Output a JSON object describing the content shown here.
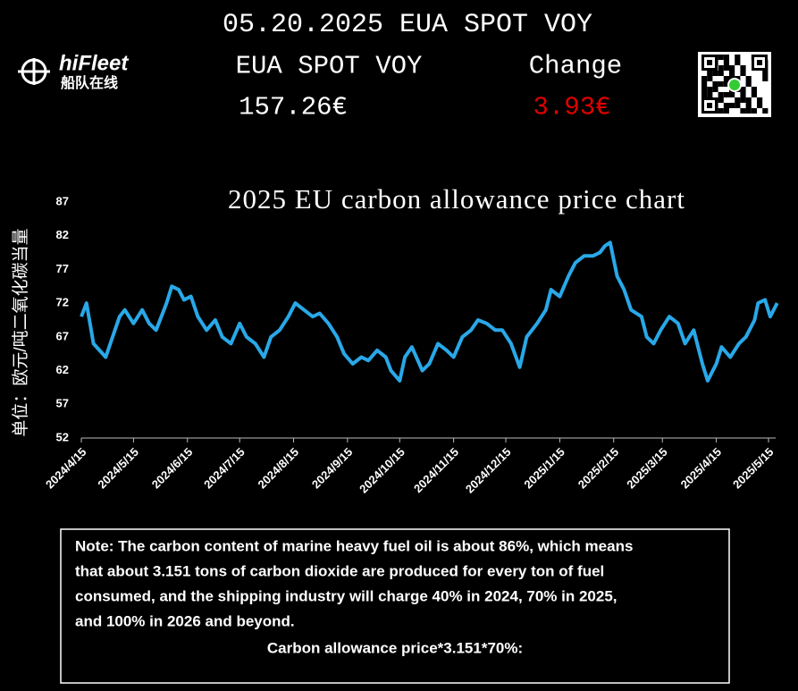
{
  "header": {
    "title": "05.20.2025 EUA SPOT VOY",
    "label": "EUA SPOT VOY",
    "price": "157.26€",
    "change_label": "Change",
    "change": "3.93€",
    "logo": "hiFleet",
    "logo_sub": "船队在线"
  },
  "note": {
    "lines": [
      "Note: The carbon content of marine heavy fuel oil is about 86%, which means",
      "that about 3.151 tons of carbon dioxide are produced for every ton of fuel",
      "consumed, and the shipping industry will charge 40% in 2024, 70% in 2025,",
      "and 100% in 2026 and beyond."
    ],
    "formula": "Carbon allowance price*3.151*70%:"
  },
  "chart_data": {
    "type": "line",
    "title": "2025 EU carbon allowance price chart",
    "y_label": "单位：欧元/吨二氧化碳当量",
    "color": "#29a8e8",
    "x": [
      "2024/4/15",
      "2024/4/18",
      "2024/4/22",
      "2024/4/29",
      "2024/5/3",
      "2024/5/7",
      "2024/5/10",
      "2024/5/15",
      "2024/5/20",
      "2024/5/24",
      "2024/5/28",
      "2024/6/3",
      "2024/6/6",
      "2024/6/10",
      "2024/6/13",
      "2024/6/17",
      "2024/6/21",
      "2024/6/26",
      "2024/7/1",
      "2024/7/5",
      "2024/7/10",
      "2024/7/15",
      "2024/7/19",
      "2024/7/24",
      "2024/7/29",
      "2024/8/2",
      "2024/8/7",
      "2024/8/12",
      "2024/8/16",
      "2024/8/21",
      "2024/8/26",
      "2024/8/30",
      "2024/9/4",
      "2024/9/9",
      "2024/9/13",
      "2024/9/18",
      "2024/9/23",
      "2024/9/27",
      "2024/10/2",
      "2024/10/7",
      "2024/10/10",
      "2024/10/15",
      "2024/10/18",
      "2024/10/22",
      "2024/10/28",
      "2024/11/1",
      "2024/11/6",
      "2024/11/11",
      "2024/11/15",
      "2024/11/20",
      "2024/11/25",
      "2024/11/29",
      "2024/12/4",
      "2024/12/9",
      "2024/12/13",
      "2024/12/18",
      "2024/12/23",
      "2024/12/27",
      "2025/1/2",
      "2025/1/7",
      "2025/1/10",
      "2025/1/15",
      "2025/1/20",
      "2025/1/24",
      "2025/1/29",
      "2025/2/3",
      "2025/2/7",
      "2025/2/10",
      "2025/2/13",
      "2025/2/17",
      "2025/2/21",
      "2025/2/25",
      "2025/3/3",
      "2025/3/6",
      "2025/3/10",
      "2025/3/14",
      "2025/3/19",
      "2025/3/24",
      "2025/3/28",
      "2025/4/2",
      "2025/4/7",
      "2025/4/10",
      "2025/4/15",
      "2025/4/18",
      "2025/4/23",
      "2025/4/28",
      "2025/5/2",
      "2025/5/7",
      "2025/5/9",
      "2025/5/13",
      "2025/5/16",
      "2025/5/20"
    ],
    "values": [
      70,
      72,
      66,
      64,
      67,
      70,
      71,
      69,
      71,
      69,
      68,
      72,
      74.5,
      74,
      72.5,
      73,
      70,
      68,
      69.5,
      67,
      66,
      69,
      67,
      66,
      64,
      67,
      68,
      70,
      72,
      71,
      70,
      70.5,
      69,
      67,
      64.5,
      63,
      64,
      63.5,
      65,
      64,
      62,
      60.5,
      64,
      65.5,
      62,
      63,
      66,
      65,
      64,
      67,
      68,
      69.5,
      69,
      68,
      68,
      66,
      62.5,
      67,
      69,
      71,
      74,
      73,
      76,
      78,
      79,
      79,
      79.5,
      80.5,
      81,
      76,
      74,
      71,
      70,
      67,
      66,
      68,
      70,
      69,
      66,
      68,
      63,
      60.5,
      63,
      65.5,
      64,
      66,
      67,
      69.5,
      72,
      72.5,
      70,
      72
    ],
    "xlim": [
      "2024/4/15",
      "2025/5/20"
    ],
    "xticks": [
      "2024/4/15",
      "2024/5/15",
      "2024/6/15",
      "2024/7/15",
      "2024/8/15",
      "2024/9/15",
      "2024/10/15",
      "2024/11/15",
      "2024/12/15",
      "2025/1/15",
      "2025/2/15",
      "2025/3/15",
      "2025/4/15",
      "2025/5/15"
    ],
    "ylim": [
      52,
      87
    ],
    "yticks": [
      52,
      57,
      62,
      67,
      72,
      77,
      82,
      87
    ],
    "grid": false
  }
}
